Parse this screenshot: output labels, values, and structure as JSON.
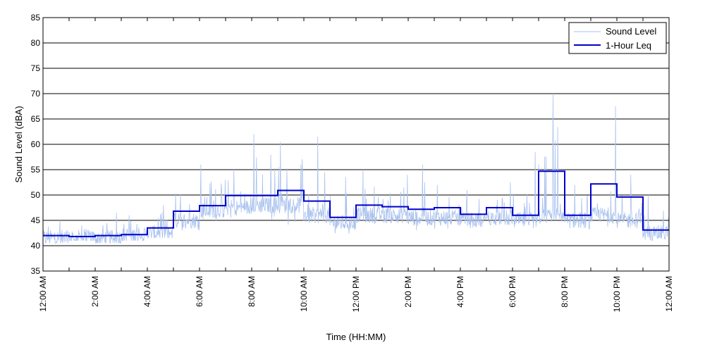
{
  "chart_data": {
    "type": "line",
    "xlabel": "Time (HH:MM)",
    "ylabel": "Sound Level (dBA)",
    "ylim": [
      35,
      85
    ],
    "yticks": [
      35,
      40,
      45,
      50,
      55,
      60,
      65,
      70,
      75,
      80,
      85
    ],
    "xlim": [
      "00:00",
      "24:00"
    ],
    "xtick_labels": [
      "12:00 AM",
      "2:00 AM",
      "4:00 AM",
      "6:00 AM",
      "8:00 AM",
      "10:00 AM",
      "12:00 PM",
      "2:00 PM",
      "4:00 PM",
      "6:00 PM",
      "8:00 PM",
      "10:00 PM",
      "12:00 AM"
    ],
    "grid": "horizontal",
    "legend_position": "top-right",
    "series": [
      {
        "name": "Sound Level",
        "color": "#a9c1ee",
        "style": "thin-continuous",
        "hourly_profile": [
          {
            "hour": "00:00",
            "typical": 41.5,
            "range": [
              40.5,
              45
            ]
          },
          {
            "hour": "01:00",
            "typical": 41.5,
            "range": [
              41,
              44
            ]
          },
          {
            "hour": "02:00",
            "typical": 41.5,
            "range": [
              40.5,
              46.5
            ]
          },
          {
            "hour": "03:00",
            "typical": 42,
            "range": [
              41,
              46
            ]
          },
          {
            "hour": "04:00",
            "typical": 42.5,
            "range": [
              41.5,
              48
            ]
          },
          {
            "hour": "05:00",
            "typical": 45,
            "range": [
              43,
              53
            ]
          },
          {
            "hour": "06:00",
            "typical": 47,
            "range": [
              44.5,
              56
            ]
          },
          {
            "hour": "07:00",
            "typical": 47.5,
            "range": [
              45,
              55
            ]
          },
          {
            "hour": "08:00",
            "typical": 48,
            "range": [
              45,
              62
            ]
          },
          {
            "hour": "09:00",
            "typical": 48,
            "range": [
              44,
              60.5
            ]
          },
          {
            "hour": "10:00",
            "typical": 46,
            "range": [
              42.5,
              61.5
            ]
          },
          {
            "hour": "11:00",
            "typical": 44.5,
            "range": [
              42,
              53.5
            ]
          },
          {
            "hour": "12:00",
            "typical": 46,
            "range": [
              43,
              55
            ]
          },
          {
            "hour": "13:00",
            "typical": 46,
            "range": [
              43,
              54
            ]
          },
          {
            "hour": "14:00",
            "typical": 45.5,
            "range": [
              43,
              56
            ]
          },
          {
            "hour": "15:00",
            "typical": 45.5,
            "range": [
              43,
              52
            ]
          },
          {
            "hour": "16:00",
            "typical": 45,
            "range": [
              43.5,
              51
            ]
          },
          {
            "hour": "17:00",
            "typical": 45.5,
            "range": [
              43.5,
              52.5
            ]
          },
          {
            "hour": "18:00",
            "typical": 45,
            "range": [
              43,
              58.5
            ]
          },
          {
            "hour": "19:00",
            "typical": 46,
            "range": [
              43.5,
              70
            ]
          },
          {
            "hour": "20:00",
            "typical": 45,
            "range": [
              43,
              52
            ]
          },
          {
            "hour": "21:00",
            "typical": 46,
            "range": [
              43.5,
              67.5
            ]
          },
          {
            "hour": "22:00",
            "typical": 45,
            "range": [
              43,
              54
            ]
          },
          {
            "hour": "23:00",
            "typical": 42.5,
            "range": [
              41,
              50
            ]
          }
        ]
      },
      {
        "name": "1-Hour Leq",
        "color": "#0000cc",
        "style": "step",
        "x": [
          "00:00",
          "01:00",
          "02:00",
          "03:00",
          "04:00",
          "05:00",
          "06:00",
          "07:00",
          "08:00",
          "09:00",
          "10:00",
          "11:00",
          "12:00",
          "13:00",
          "14:00",
          "15:00",
          "16:00",
          "17:00",
          "18:00",
          "19:00",
          "20:00",
          "21:00",
          "22:00",
          "23:00"
        ],
        "values": [
          42.0,
          41.8,
          42.0,
          42.2,
          43.5,
          46.8,
          47.9,
          49.9,
          49.9,
          50.9,
          48.8,
          45.6,
          48.0,
          47.7,
          47.2,
          47.5,
          46.2,
          47.5,
          46.0,
          54.7,
          46.0,
          52.2,
          49.6,
          43.1
        ]
      }
    ]
  }
}
